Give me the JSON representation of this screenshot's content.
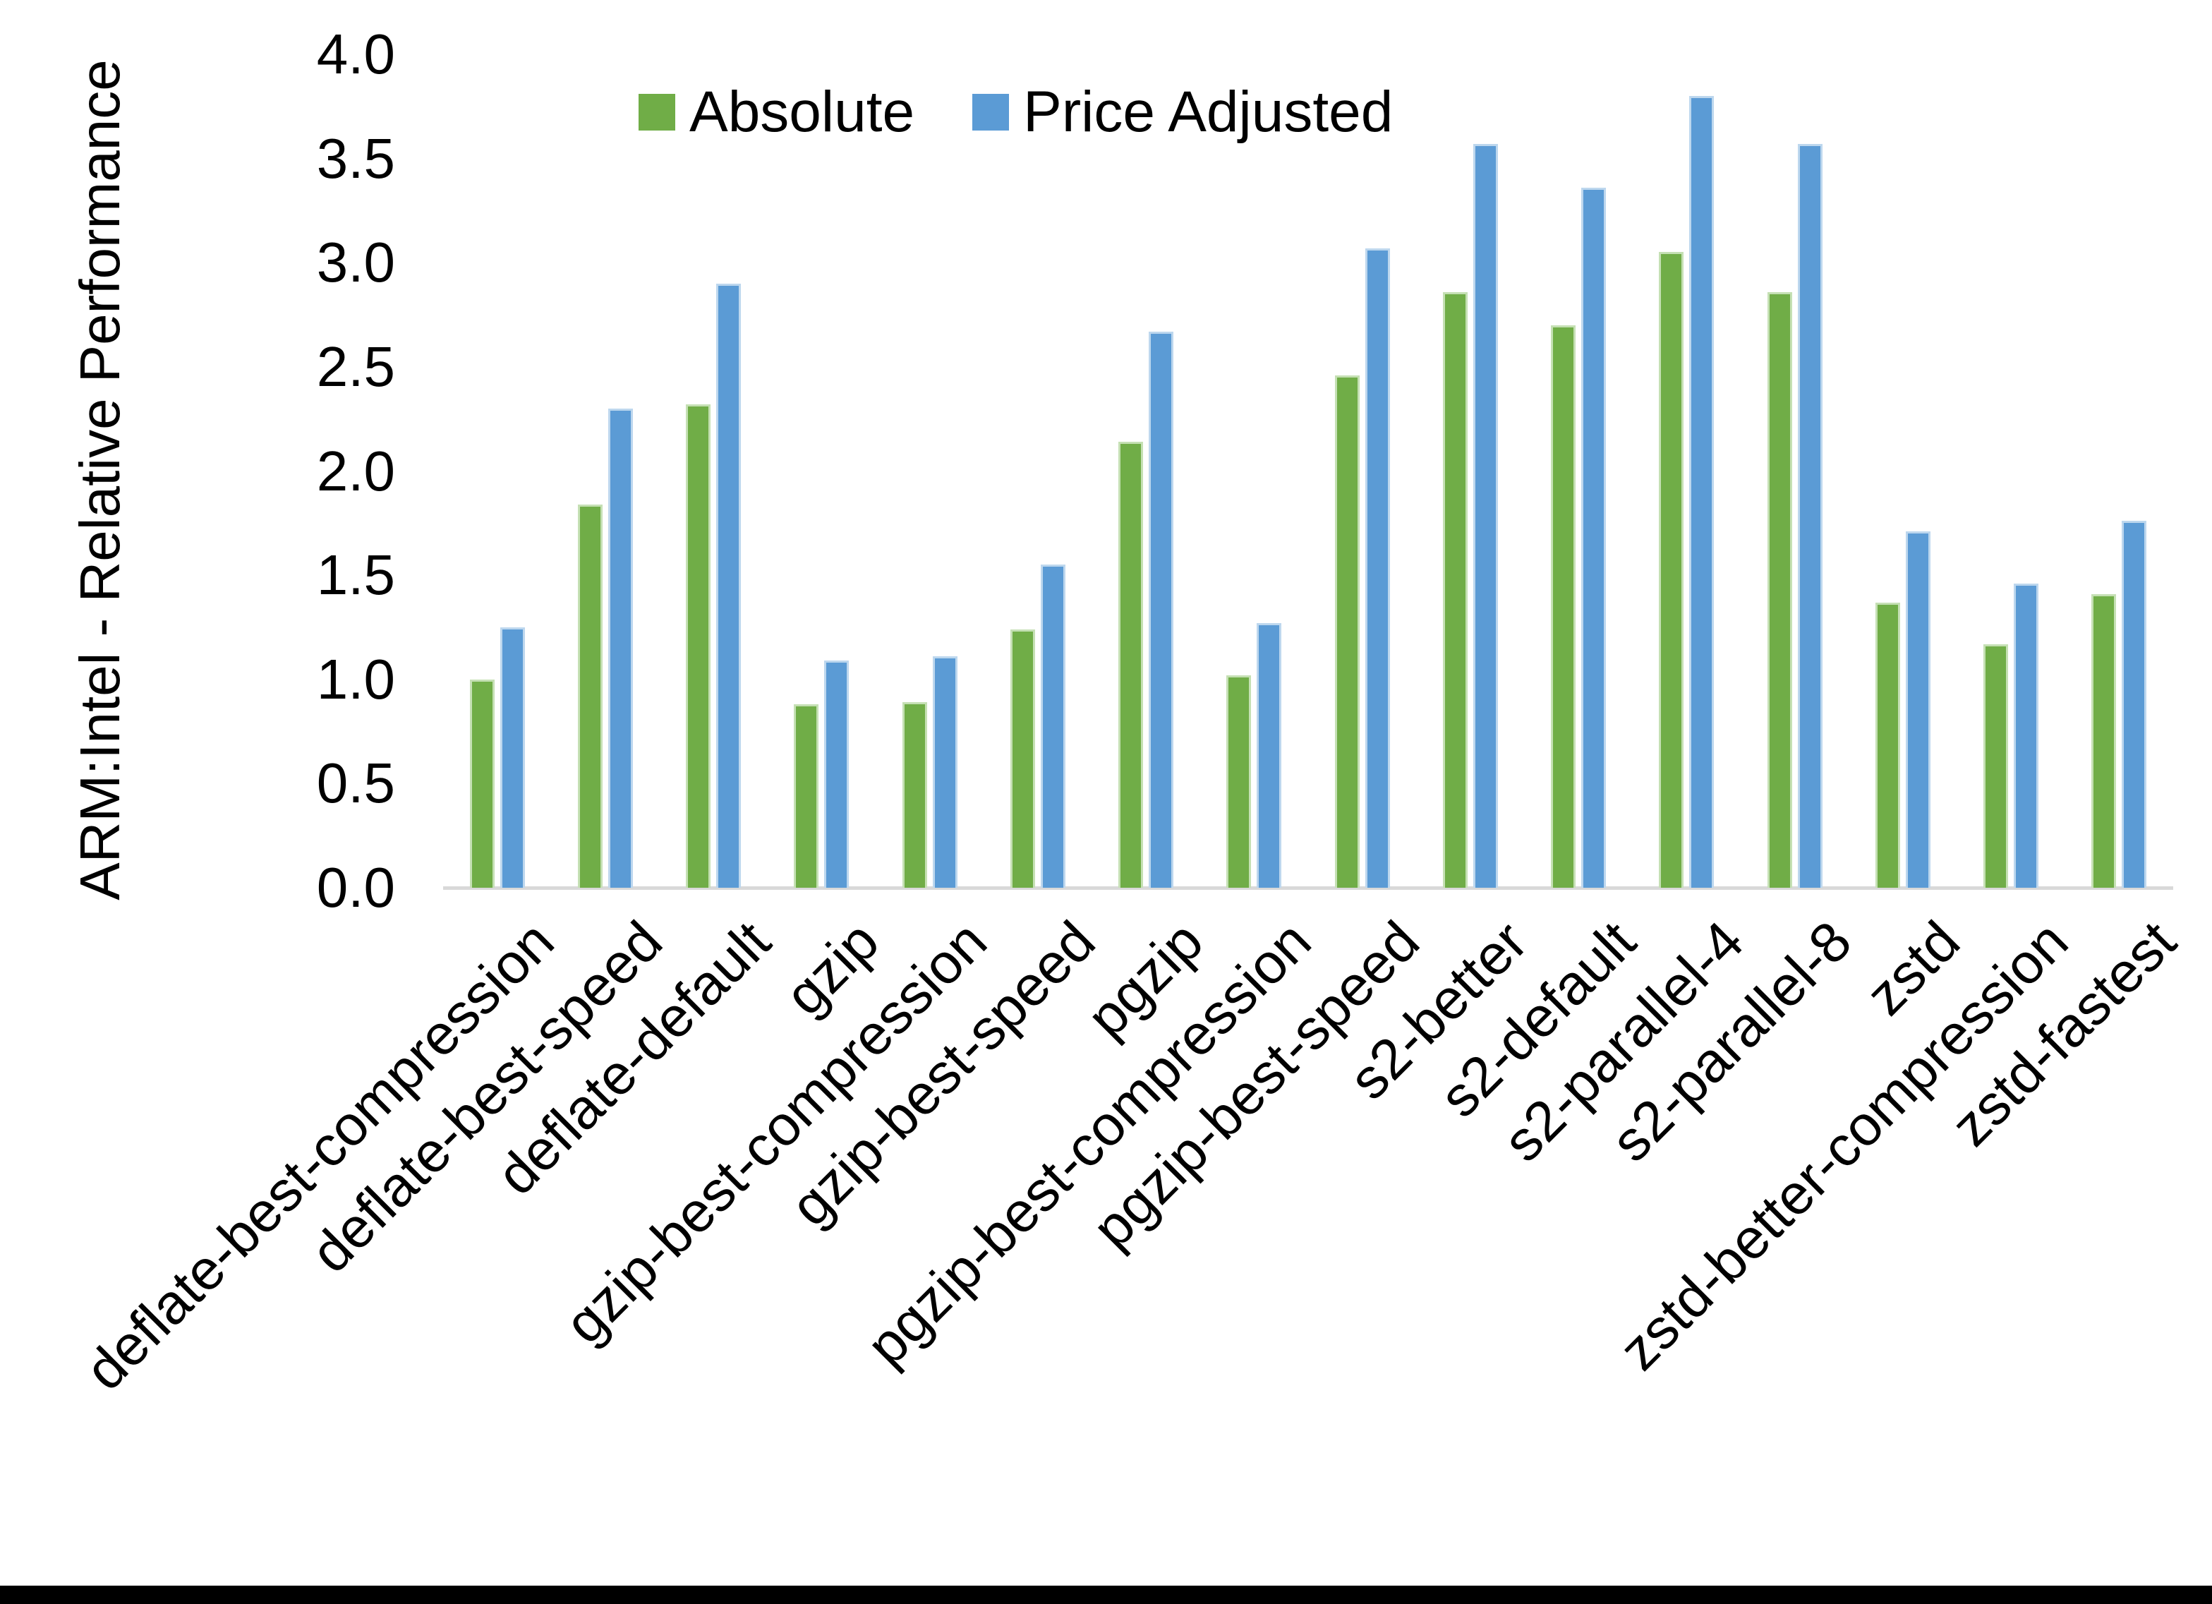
{
  "y_axis_title": "ARM:Intel - Relative Performance",
  "legend": {
    "items": [
      {
        "label": "Absolute",
        "color": "#70AD47"
      },
      {
        "label": "Price Adjusted",
        "color": "#5B9BD5"
      }
    ]
  },
  "chart_data": {
    "type": "bar",
    "title": "",
    "xlabel": "",
    "ylabel": "ARM:Intel - Relative Performance",
    "ylim": [
      0.0,
      4.0
    ],
    "ytick_step": 0.5,
    "ytick_labels": [
      "0.0",
      "0.5",
      "1.0",
      "1.5",
      "2.0",
      "2.5",
      "3.0",
      "3.5",
      "4.0"
    ],
    "grid": false,
    "legend_position": "top-center",
    "categories": [
      "deflate-best-compression",
      "deflate-best-speed",
      "deflate-default",
      "gzip",
      "gzip-best-compression",
      "gzip-best-speed",
      "pgzip",
      "pgzip-best-compression",
      "pgzip-best-speed",
      "s2-better",
      "s2-default",
      "s2-parallel-4",
      "s2-parallel-8",
      "zstd",
      "zstd-better-compression",
      "zstd-fastest"
    ],
    "series": [
      {
        "name": "Absolute",
        "color": "#70AD47",
        "edge_color": "#C5E0B4",
        "values": [
          1.0,
          1.84,
          2.32,
          0.88,
          0.89,
          1.24,
          2.14,
          1.02,
          2.46,
          2.86,
          2.7,
          3.05,
          2.86,
          1.37,
          1.17,
          1.41
        ]
      },
      {
        "name": "Price Adjusted",
        "color": "#5B9BD5",
        "edge_color": "#BDD7EE",
        "values": [
          1.25,
          2.3,
          2.9,
          1.09,
          1.11,
          1.55,
          2.67,
          1.27,
          3.07,
          3.57,
          3.36,
          3.8,
          3.57,
          1.71,
          1.46,
          1.76
        ]
      }
    ]
  }
}
